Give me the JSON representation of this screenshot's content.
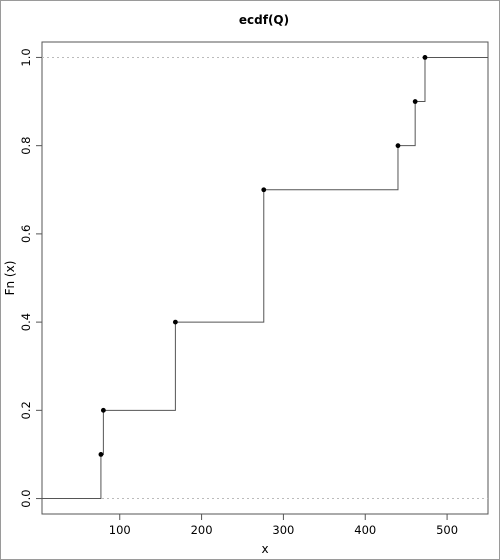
{
  "chart_data": {
    "type": "step",
    "title": "ecdf(Q)",
    "xlabel": "x",
    "ylabel": "Fn (x)",
    "xlim": [
      5,
      550
    ],
    "ylim": [
      -0.035,
      1.035
    ],
    "x_ticks": [
      100,
      200,
      300,
      400,
      500
    ],
    "y_ticks": [
      0.0,
      0.2,
      0.4,
      0.6,
      0.8,
      1.0
    ],
    "x_tick_labels": [
      "100",
      "200",
      "300",
      "400",
      "500"
    ],
    "y_tick_labels": [
      "0.0",
      "0.2",
      "0.4",
      "0.6",
      "0.8",
      "1.0"
    ],
    "reference_lines_y": [
      0,
      1
    ],
    "points": [
      {
        "x": 77,
        "y": 0.1
      },
      {
        "x": 80,
        "y": 0.2
      },
      {
        "x": 168,
        "y": 0.4
      },
      {
        "x": 276,
        "y": 0.7
      },
      {
        "x": 440,
        "y": 0.8
      },
      {
        "x": 461,
        "y": 0.9
      },
      {
        "x": 473,
        "y": 1.0
      }
    ],
    "colors": {
      "line": "#555555",
      "point": "#000000",
      "reference": "#bbbbbb"
    }
  }
}
